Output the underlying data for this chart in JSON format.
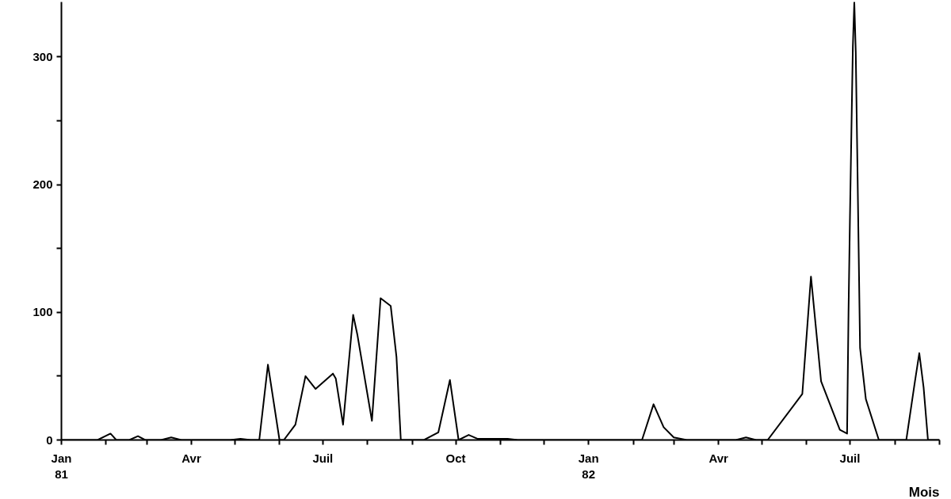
{
  "chart_data": {
    "type": "line",
    "xlabel": "Mois",
    "color": "#000000",
    "grid": false,
    "marker": "none",
    "line_style": "solid",
    "x": [
      "1981-01-01",
      "1981-01-26",
      "1981-02-04",
      "1981-02-08",
      "1981-02-17",
      "1981-02-23",
      "1981-02-28",
      "1981-03-11",
      "1981-03-18",
      "1981-03-25",
      "1981-04-28",
      "1981-05-05",
      "1981-05-12",
      "1981-05-18",
      "1981-05-24",
      "1981-06-01",
      "1981-06-04",
      "1981-06-12",
      "1981-06-19",
      "1981-06-26",
      "1981-07-08",
      "1981-07-10",
      "1981-07-15",
      "1981-07-22",
      "1981-07-25",
      "1981-08-04",
      "1981-08-10",
      "1981-08-17",
      "1981-08-21",
      "1981-08-24",
      "1981-09-09",
      "1981-09-19",
      "1981-09-27",
      "1981-10-03",
      "1981-10-10",
      "1981-10-16",
      "1981-10-21",
      "1981-11-06",
      "1981-11-13",
      "1982-02-07",
      "1982-02-15",
      "1982-02-22",
      "1982-03-01",
      "1982-03-10",
      "1982-04-13",
      "1982-04-20",
      "1982-04-27",
      "1982-05-05",
      "1982-05-29",
      "1982-06-04",
      "1982-06-11",
      "1982-06-24",
      "1982-06-29",
      "1982-06-30",
      "1982-07-01",
      "1982-07-02",
      "1982-07-03",
      "1982-07-04",
      "1982-07-05",
      "1982-07-06",
      "1982-07-07",
      "1982-07-08",
      "1982-07-12",
      "1982-07-21",
      "1982-08-09",
      "1982-08-15",
      "1982-08-18",
      "1982-08-21",
      "1982-08-24",
      "1982-09-01"
    ],
    "values": [
      0,
      0,
      5,
      0,
      0,
      3,
      0,
      0,
      2,
      0,
      0,
      1,
      0,
      0,
      59,
      0,
      0,
      12,
      50,
      40,
      52,
      48,
      12,
      98,
      82,
      15,
      111,
      105,
      65,
      0,
      0,
      6,
      47,
      0,
      4,
      1,
      1,
      1,
      0,
      0,
      28,
      10,
      2,
      0,
      0,
      2,
      0,
      0,
      36,
      128,
      46,
      8,
      5,
      100,
      175,
      242,
      308,
      343,
      304,
      228,
      150,
      72,
      32,
      0,
      0,
      46,
      68,
      41,
      0,
      0
    ],
    "xlim": [
      "1981-01-01",
      "1982-09-01"
    ],
    "ylim": [
      0,
      343
    ],
    "xticks": [
      {
        "value": "1981-01-01",
        "label": "Jan\n81"
      },
      {
        "value": "1981-02-01",
        "label": null
      },
      {
        "value": "1981-03-01",
        "label": null
      },
      {
        "value": "1981-04-01",
        "label": "Avr"
      },
      {
        "value": "1981-05-01",
        "label": null
      },
      {
        "value": "1981-06-01",
        "label": null
      },
      {
        "value": "1981-07-01",
        "label": "Juil"
      },
      {
        "value": "1981-08-01",
        "label": null
      },
      {
        "value": "1981-09-01",
        "label": null
      },
      {
        "value": "1981-10-01",
        "label": "Oct"
      },
      {
        "value": "1981-11-01",
        "label": null
      },
      {
        "value": "1981-12-01",
        "label": null
      },
      {
        "value": "1982-01-01",
        "label": "Jan\n82"
      },
      {
        "value": "1982-02-01",
        "label": null
      },
      {
        "value": "1982-03-01",
        "label": null
      },
      {
        "value": "1982-04-01",
        "label": "Avr"
      },
      {
        "value": "1982-05-01",
        "label": null
      },
      {
        "value": "1982-06-01",
        "label": null
      },
      {
        "value": "1982-07-01",
        "label": "Juil"
      },
      {
        "value": "1982-08-01",
        "label": null
      },
      {
        "value": "1982-09-01",
        "label": null
      }
    ],
    "yticks": [
      0,
      {
        "value": 50,
        "label": null
      },
      100,
      {
        "value": 150,
        "label": null
      },
      200,
      {
        "value": 250,
        "label": null
      },
      300
    ]
  }
}
